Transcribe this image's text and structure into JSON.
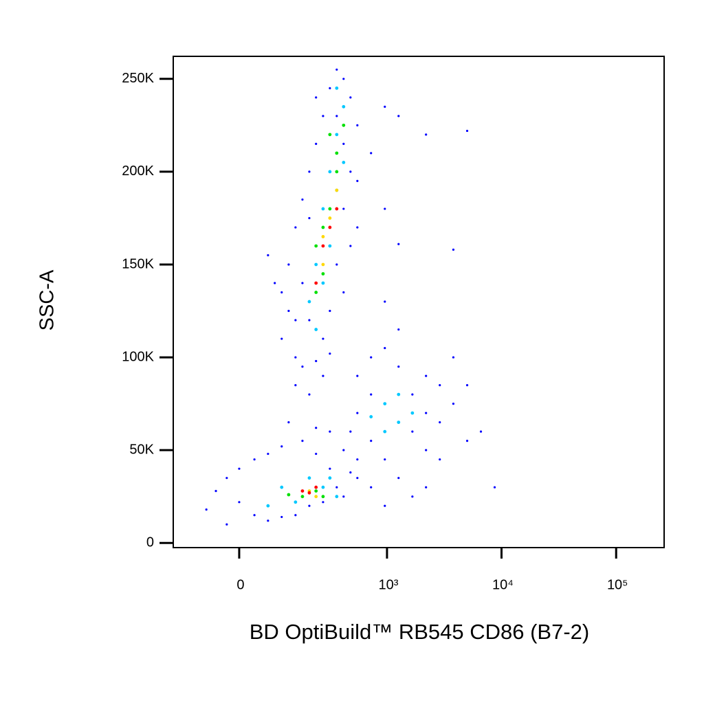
{
  "chart_data": {
    "type": "scatter",
    "x_label": "BD OptiBuild™ RB545 CD86 (B7-2)",
    "y_label": "SSC-A",
    "xscale": "biexponential",
    "xlim": [
      -180,
      262144
    ],
    "xticks": [
      0,
      {
        "value": 1000,
        "label": "10³"
      },
      {
        "value": 10000,
        "label": "10⁴"
      },
      {
        "value": 100000,
        "label": "10⁵"
      }
    ],
    "ylim": [
      -2500,
      262144
    ],
    "yticks": [
      0,
      {
        "value": 50000,
        "label": "50K"
      },
      {
        "value": 100000,
        "label": "100K"
      },
      {
        "value": 150000,
        "label": "150K"
      },
      {
        "value": 200000,
        "label": "200K"
      },
      {
        "value": 250000,
        "label": "250K"
      }
    ],
    "series": [
      {
        "color": "#0000ff",
        "x": [
          99,
          143,
          169,
          230,
          198,
          99,
          120,
          143,
          169,
          198,
          230,
          268,
          310,
          358,
          413,
          476,
          548,
          476,
          413,
          358,
          310,
          268,
          413,
          548,
          724,
          957,
          1263,
          2194,
          5016,
          3800,
          1263,
          957,
          957,
          63,
          80,
          143,
          198,
          268,
          310,
          120,
          476,
          548,
          413,
          358,
          230,
          198,
          169,
          143,
          -73,
          -26,
          -26,
          0,
          0,
          32,
          32,
          63,
          63,
          99,
          99,
          143,
          169,
          198,
          230,
          268,
          310,
          358,
          413,
          476,
          548,
          310,
          230,
          120,
          413,
          -50,
          548,
          724,
          957,
          1263,
          1668,
          2194,
          2894,
          3800,
          5016,
          6613,
          5016,
          2894,
          2194,
          1668,
          1263,
          957,
          724,
          548,
          476,
          548,
          724,
          957,
          1668,
          2194,
          2894,
          1263,
          8714,
          3800,
          724,
          2194
        ],
        "y": [
          110000,
          100000,
          95000,
          98000,
          120000,
          135000,
          150000,
          170000,
          185000,
          200000,
          215000,
          230000,
          245000,
          255000,
          250000,
          240000,
          225000,
          200000,
          180000,
          150000,
          125000,
          110000,
          135000,
          170000,
          210000,
          235000,
          230000,
          220000,
          222000,
          158000,
          161000,
          180000,
          130000,
          155000,
          140000,
          85000,
          80000,
          90000,
          102000,
          125000,
          160000,
          195000,
          215000,
          230000,
          240000,
          175000,
          140000,
          120000,
          18000,
          10000,
          35000,
          22000,
          40000,
          15000,
          45000,
          12000,
          48000,
          14000,
          52000,
          15000,
          55000,
          20000,
          48000,
          22000,
          40000,
          30000,
          25000,
          38000,
          35000,
          60000,
          62000,
          65000,
          50000,
          28000,
          90000,
          100000,
          105000,
          95000,
          80000,
          90000,
          85000,
          75000,
          85000,
          60000,
          55000,
          45000,
          30000,
          25000,
          35000,
          20000,
          30000,
          45000,
          60000,
          70000,
          55000,
          45000,
          60000,
          70000,
          65000,
          115000,
          30000,
          100000,
          80000,
          50000
        ]
      },
      {
        "color": "#00c8ff",
        "x": [
          198,
          230,
          268,
          310,
          358,
          413,
          358,
          230,
          268,
          310,
          358,
          413,
          957,
          1263,
          1263,
          957,
          1668,
          724,
          143,
          310,
          198,
          99,
          358,
          63,
          268
        ],
        "y": [
          130000,
          150000,
          180000,
          200000,
          220000,
          235000,
          245000,
          115000,
          140000,
          160000,
          190000,
          205000,
          75000,
          65000,
          80000,
          60000,
          70000,
          68000,
          22000,
          35000,
          35000,
          30000,
          25000,
          20000,
          30000
        ]
      },
      {
        "color": "#00e000",
        "x": [
          230,
          268,
          310,
          358,
          310,
          268,
          358,
          230,
          413,
          169,
          230,
          120,
          268
        ],
        "y": [
          160000,
          170000,
          180000,
          210000,
          220000,
          145000,
          200000,
          135000,
          225000,
          25000,
          28000,
          26000,
          25000
        ]
      },
      {
        "color": "#ffd800",
        "x": [
          268,
          310,
          268,
          358,
          198,
          230
        ],
        "y": [
          165000,
          175000,
          150000,
          190000,
          28000,
          25000
        ]
      },
      {
        "color": "#ff0000",
        "x": [
          268,
          310,
          230,
          358,
          169,
          198,
          230
        ],
        "y": [
          160000,
          170000,
          140000,
          180000,
          28000,
          27000,
          30000
        ]
      }
    ]
  }
}
